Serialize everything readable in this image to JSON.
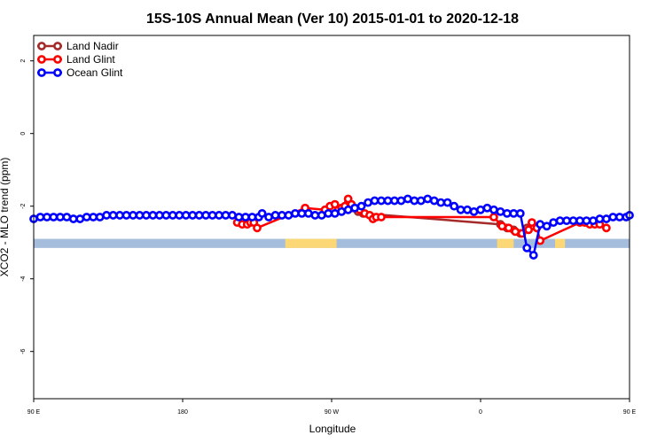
{
  "chart_data": {
    "type": "line",
    "title": "15S-10S Annual Mean (Ver 10)   2015-01-01 to 2020-12-18",
    "xlabel": "Longitude",
    "ylabel": "XCO2 - MLO trend (ppm)",
    "xlim": [
      -90,
      270
    ],
    "ylim": [
      -7.3,
      2.7
    ],
    "x_ticks": [
      {
        "value": -90,
        "label": "90 E"
      },
      {
        "value": 0,
        "label": "180"
      },
      {
        "value": 90,
        "label": "90 W"
      },
      {
        "value": 180,
        "label": "0"
      },
      {
        "value": 270,
        "label": "90 E"
      },
      {
        "value": 360,
        "label": "180"
      }
    ],
    "y_ticks": [
      {
        "value": 2,
        "label": "2"
      },
      {
        "value": 0,
        "label": "0"
      },
      {
        "value": -2,
        "label": "-2"
      },
      {
        "value": -4,
        "label": "-4"
      },
      {
        "value": -6,
        "label": "-6"
      }
    ],
    "legend": {
      "placement": "top-left"
    },
    "colors": {
      "land_nadir": "#a52a2a",
      "land_glint": "#ff0000",
      "ocean_glint": "#0000ff",
      "ocean_band": "#a4bddd",
      "land_band": "#fcd775"
    },
    "land_mask": {
      "y_top": -2.9,
      "y_bottom": -3.15,
      "land_segments": [
        [
          62,
          93
        ],
        [
          190,
          200
        ],
        [
          225,
          231
        ]
      ]
    },
    "series": [
      {
        "name": "Land Nadir",
        "color": "#a52a2a",
        "points": [
          [
            100,
            -1.9
          ],
          [
            103,
            -2.05
          ],
          [
            106,
            -2.15
          ],
          [
            109,
            -2.2
          ],
          [
            192,
            -2.5
          ],
          [
            196,
            -2.6
          ],
          [
            200,
            -2.65
          ],
          [
            204,
            -2.75
          ],
          [
            208,
            -2.6
          ],
          [
            211,
            -2.55
          ]
        ]
      },
      {
        "name": "Land Glint",
        "color": "#ff0000",
        "points": [
          [
            33,
            -2.45
          ],
          [
            36,
            -2.5
          ],
          [
            39,
            -2.5
          ],
          [
            41,
            -2.45
          ],
          [
            43,
            -2.45
          ],
          [
            45,
            -2.6
          ],
          [
            74,
            -2.05
          ],
          [
            86,
            -2.1
          ],
          [
            89,
            -2.0
          ],
          [
            92,
            -1.95
          ],
          [
            94,
            -2.1
          ],
          [
            96,
            -2.05
          ],
          [
            98,
            -2.0
          ],
          [
            100,
            -1.8
          ],
          [
            102,
            -1.95
          ],
          [
            104,
            -2.05
          ],
          [
            107,
            -2.1
          ],
          [
            110,
            -2.2
          ],
          [
            113,
            -2.25
          ],
          [
            115,
            -2.35
          ],
          [
            117,
            -2.3
          ],
          [
            120,
            -2.3
          ],
          [
            188,
            -2.3
          ],
          [
            193,
            -2.55
          ],
          [
            197,
            -2.6
          ],
          [
            201,
            -2.7
          ],
          [
            205,
            -2.75
          ],
          [
            209,
            -2.65
          ],
          [
            211,
            -2.45
          ],
          [
            214,
            -2.6
          ],
          [
            216,
            -2.95
          ],
          [
            240,
            -2.45
          ],
          [
            243,
            -2.45
          ],
          [
            246,
            -2.5
          ],
          [
            249,
            -2.5
          ],
          [
            252,
            -2.5
          ],
          [
            256,
            -2.6
          ]
        ]
      },
      {
        "name": "Ocean Glint",
        "color": "#0000ff",
        "points": [
          [
            -90,
            -2.35
          ],
          [
            -86,
            -2.3
          ],
          [
            -82,
            -2.3
          ],
          [
            -78,
            -2.3
          ],
          [
            -74,
            -2.3
          ],
          [
            -70,
            -2.3
          ],
          [
            -66,
            -2.35
          ],
          [
            -62,
            -2.35
          ],
          [
            -58,
            -2.3
          ],
          [
            -54,
            -2.3
          ],
          [
            -50,
            -2.3
          ],
          [
            -46,
            -2.25
          ],
          [
            -42,
            -2.25
          ],
          [
            -38,
            -2.25
          ],
          [
            -34,
            -2.25
          ],
          [
            -30,
            -2.25
          ],
          [
            -26,
            -2.25
          ],
          [
            -22,
            -2.25
          ],
          [
            -18,
            -2.25
          ],
          [
            -14,
            -2.25
          ],
          [
            -10,
            -2.25
          ],
          [
            -6,
            -2.25
          ],
          [
            -2,
            -2.25
          ],
          [
            2,
            -2.25
          ],
          [
            6,
            -2.25
          ],
          [
            10,
            -2.25
          ],
          [
            14,
            -2.25
          ],
          [
            18,
            -2.25
          ],
          [
            22,
            -2.25
          ],
          [
            26,
            -2.25
          ],
          [
            30,
            -2.25
          ],
          [
            34,
            -2.3
          ],
          [
            38,
            -2.3
          ],
          [
            42,
            -2.3
          ],
          [
            46,
            -2.3
          ],
          [
            48,
            -2.2
          ],
          [
            52,
            -2.3
          ],
          [
            56,
            -2.25
          ],
          [
            60,
            -2.25
          ],
          [
            64,
            -2.25
          ],
          [
            68,
            -2.2
          ],
          [
            72,
            -2.2
          ],
          [
            76,
            -2.2
          ],
          [
            80,
            -2.25
          ],
          [
            84,
            -2.25
          ],
          [
            88,
            -2.2
          ],
          [
            92,
            -2.2
          ],
          [
            96,
            -2.15
          ],
          [
            100,
            -2.1
          ],
          [
            104,
            -2.05
          ],
          [
            108,
            -2.0
          ],
          [
            112,
            -1.9
          ],
          [
            116,
            -1.85
          ],
          [
            120,
            -1.85
          ],
          [
            124,
            -1.85
          ],
          [
            128,
            -1.85
          ],
          [
            132,
            -1.85
          ],
          [
            136,
            -1.8
          ],
          [
            140,
            -1.85
          ],
          [
            144,
            -1.85
          ],
          [
            148,
            -1.8
          ],
          [
            152,
            -1.85
          ],
          [
            156,
            -1.9
          ],
          [
            160,
            -1.9
          ],
          [
            164,
            -2.0
          ],
          [
            168,
            -2.1
          ],
          [
            172,
            -2.1
          ],
          [
            176,
            -2.15
          ],
          [
            180,
            -2.1
          ],
          [
            184,
            -2.05
          ],
          [
            188,
            -2.1
          ],
          [
            192,
            -2.15
          ],
          [
            196,
            -2.2
          ],
          [
            200,
            -2.2
          ],
          [
            204,
            -2.2
          ],
          [
            208,
            -3.15
          ],
          [
            212,
            -3.35
          ],
          [
            216,
            -2.5
          ],
          [
            220,
            -2.55
          ],
          [
            224,
            -2.45
          ],
          [
            228,
            -2.4
          ],
          [
            232,
            -2.4
          ],
          [
            236,
            -2.4
          ],
          [
            240,
            -2.4
          ],
          [
            244,
            -2.4
          ],
          [
            248,
            -2.4
          ],
          [
            252,
            -2.35
          ],
          [
            256,
            -2.35
          ],
          [
            260,
            -2.3
          ],
          [
            264,
            -2.3
          ],
          [
            268,
            -2.3
          ],
          [
            270,
            -2.25
          ]
        ]
      }
    ]
  }
}
